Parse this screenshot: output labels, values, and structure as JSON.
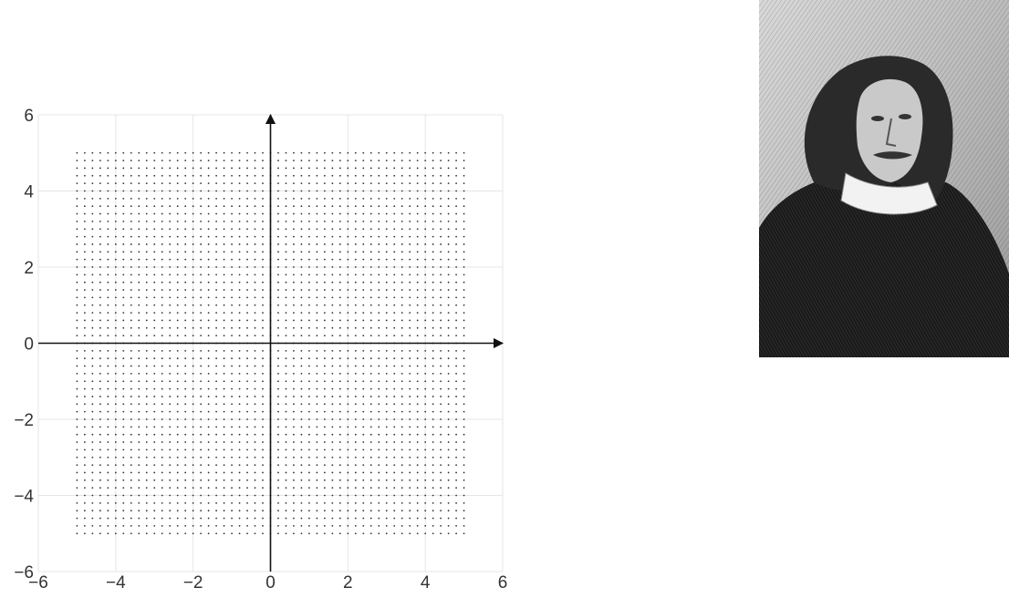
{
  "chart_data": {
    "type": "scatter",
    "title": "",
    "xlabel": "",
    "ylabel": "",
    "xlim": [
      -6,
      6
    ],
    "ylim": [
      -6,
      6
    ],
    "x_ticks": [
      -6,
      -4,
      -2,
      0,
      2,
      4,
      6
    ],
    "y_ticks": [
      -6,
      -4,
      -2,
      0,
      2,
      4,
      6
    ],
    "x_tick_labels": [
      "−6",
      "−4",
      "−2",
      "0",
      "2",
      "4",
      "6"
    ],
    "y_tick_labels": [
      "−6",
      "−4",
      "−2",
      "0",
      "2",
      "4",
      "6"
    ],
    "grid": true,
    "axes_arrows": true,
    "point_grid": {
      "x_range": [
        -5,
        5
      ],
      "y_range": [
        -5,
        5
      ],
      "spacing": 0.2
    },
    "colors": {
      "points": "#333333",
      "axes": "#111111",
      "grid": "#e6e6e6"
    }
  },
  "portrait": {
    "icon": "engraved-portrait-of-man-with-long-hair-and-white-collar"
  }
}
